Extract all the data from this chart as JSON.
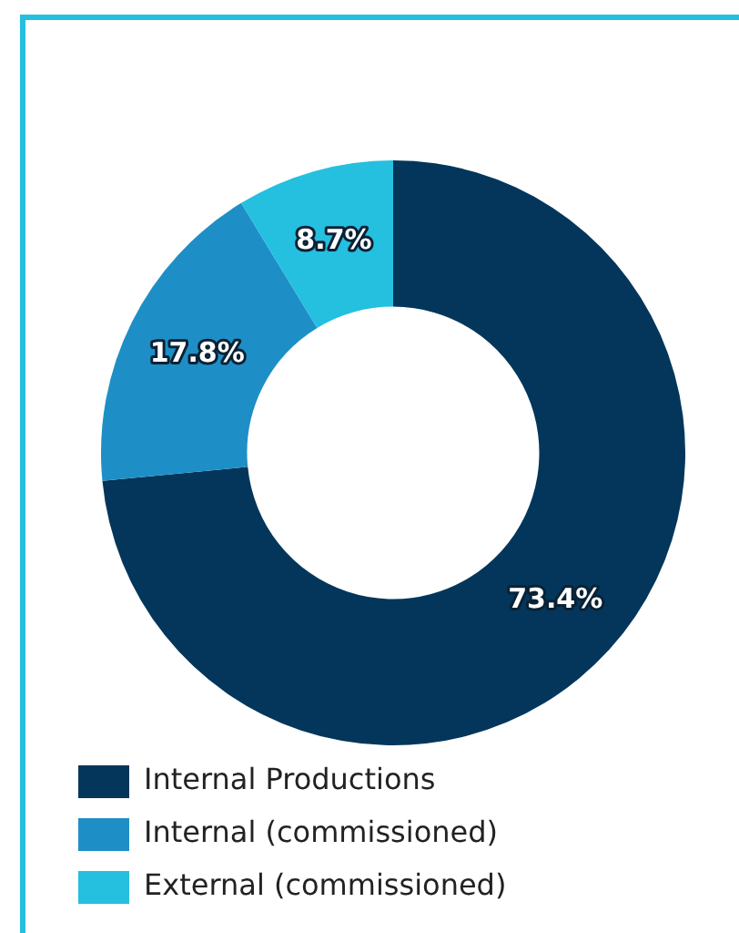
{
  "chart_data": {
    "type": "donut",
    "categories": [
      "Internal Productions",
      "Internal (commissioned)",
      "External (commissioned)"
    ],
    "values": [
      73.4,
      17.8,
      8.7
    ],
    "colors": [
      "#03365a",
      "#1e8fc6",
      "#25bfe0"
    ],
    "value_labels": [
      "73.4%",
      "17.8%",
      "8.7%"
    ],
    "legend": "bottom left"
  }
}
